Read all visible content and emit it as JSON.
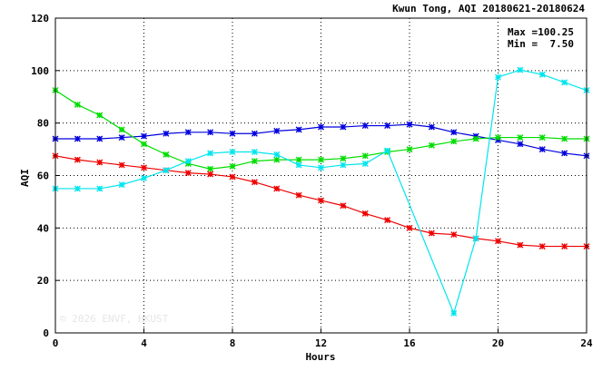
{
  "chart_data": {
    "type": "line",
    "title": "Kwun Tong, AQI 20180621-20180624",
    "xlabel": "Hours",
    "ylabel": "AQI",
    "xlim": [
      0,
      24
    ],
    "ylim": [
      0,
      120
    ],
    "xticks": [
      0,
      4,
      8,
      12,
      16,
      20,
      24
    ],
    "xtick_labels": [
      "0",
      "4",
      "8",
      "12",
      "16",
      "20",
      "24"
    ],
    "yticks": [
      0,
      20,
      40,
      60,
      80,
      100,
      120
    ],
    "ytick_labels": [
      "0",
      "20",
      "40",
      "60",
      "80",
      "100",
      "120"
    ],
    "grid": true,
    "stats": {
      "max_label": "Max =",
      "max_value": "100.25",
      "min_label": "Min =",
      "min_value": "7.50"
    },
    "watermark": "© 2026  ENVF, HKUST",
    "x": [
      0,
      1,
      2,
      3,
      4,
      5,
      6,
      7,
      8,
      9,
      10,
      11,
      12,
      13,
      14,
      15,
      16,
      17,
      18,
      19,
      20,
      21,
      22,
      23,
      24
    ],
    "series": [
      {
        "color": "#0000dd",
        "values": [
          74,
          74,
          74,
          74.5,
          75,
          76,
          76.5,
          76.5,
          76,
          76,
          77,
          77.5,
          78.5,
          78.5,
          79,
          79,
          79.5,
          78.5,
          76.5,
          75,
          73.5,
          72,
          70,
          68.5,
          67.5
        ]
      },
      {
        "color": "#00dd00",
        "values": [
          92.5,
          87,
          83,
          77.5,
          72,
          68,
          64.5,
          62.5,
          63.5,
          65.5,
          66,
          66,
          66,
          66.5,
          67.5,
          69,
          70,
          71.5,
          73,
          74,
          74.5,
          74.5,
          74.5,
          74,
          74
        ]
      },
      {
        "color": "#ee0000",
        "values": [
          67.5,
          66,
          65,
          64,
          63,
          62,
          61,
          60.5,
          59.5,
          57.5,
          55,
          52.5,
          50.5,
          48.5,
          45.5,
          43,
          40,
          38,
          37.5,
          36,
          35,
          33.5,
          33,
          33,
          33
        ]
      },
      {
        "color": "#00e5ee",
        "values": [
          55,
          55,
          55,
          56.5,
          59,
          62,
          65.5,
          68.5,
          69,
          69,
          68,
          64,
          63,
          64,
          64.5,
          69.5,
          null,
          null,
          7.5,
          36,
          97.5,
          100.25,
          98.5,
          95.5,
          92.5
        ]
      }
    ]
  }
}
